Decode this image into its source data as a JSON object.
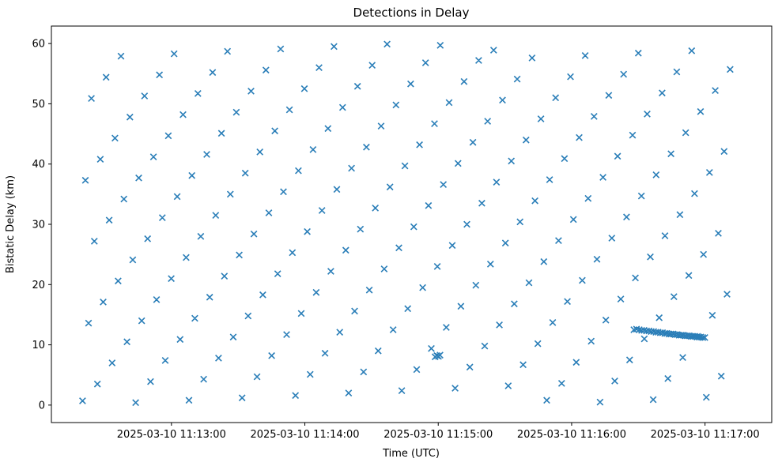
{
  "chart_data": {
    "type": "scatter",
    "title": "Detections in Delay",
    "xlabel": "Time (UTC)",
    "ylabel": "Bistatic Delay (km)",
    "marker": "x",
    "marker_color": "#1f77b4",
    "grid": false,
    "legend": "none",
    "x_unit": "seconds after 2025-03-10 11:12:00",
    "xlim": [
      6,
      330
    ],
    "ylim": [
      -2.9,
      62.9
    ],
    "x_ticks": {
      "seconds": [
        60,
        120,
        180,
        240,
        300
      ],
      "labels": [
        "2025-03-10 11:13:00",
        "2025-03-10 11:14:00",
        "2025-03-10 11:15:00",
        "2025-03-10 11:16:00",
        "2025-03-10 11:17:00"
      ]
    },
    "y_ticks": [
      0,
      10,
      20,
      30,
      40,
      50,
      60
    ],
    "points": [
      [
        20,
        0.7
      ],
      [
        21.3,
        37.3
      ],
      [
        22.7,
        13.6
      ],
      [
        24,
        50.9
      ],
      [
        25.3,
        27.2
      ],
      [
        26.7,
        3.5
      ],
      [
        28,
        40.8
      ],
      [
        29.3,
        17.1
      ],
      [
        30.6,
        54.4
      ],
      [
        32,
        30.7
      ],
      [
        33.3,
        7
      ],
      [
        34.6,
        44.3
      ],
      [
        36,
        20.6
      ],
      [
        37.3,
        57.9
      ],
      [
        38.6,
        34.2
      ],
      [
        40,
        10.5
      ],
      [
        41.3,
        47.8
      ],
      [
        42.6,
        24.1
      ],
      [
        43.9,
        0.4
      ],
      [
        45.3,
        37.7
      ],
      [
        46.6,
        14
      ],
      [
        47.9,
        51.3
      ],
      [
        49.3,
        27.6
      ],
      [
        50.6,
        3.9
      ],
      [
        51.9,
        41.2
      ],
      [
        53.3,
        17.5
      ],
      [
        54.6,
        54.8
      ],
      [
        55.9,
        31.1
      ],
      [
        57.2,
        7.4
      ],
      [
        58.6,
        44.7
      ],
      [
        59.9,
        21
      ],
      [
        61.2,
        58.3
      ],
      [
        62.6,
        34.6
      ],
      [
        63.9,
        10.9
      ],
      [
        65.2,
        48.2
      ],
      [
        66.6,
        24.5
      ],
      [
        67.9,
        0.8
      ],
      [
        69.2,
        38.1
      ],
      [
        70.5,
        14.4
      ],
      [
        71.9,
        51.7
      ],
      [
        73.2,
        28
      ],
      [
        74.5,
        4.3
      ],
      [
        75.9,
        41.6
      ],
      [
        77.2,
        17.9
      ],
      [
        78.5,
        55.2
      ],
      [
        79.9,
        31.5
      ],
      [
        81.2,
        7.8
      ],
      [
        82.5,
        45.1
      ],
      [
        83.8,
        21.4
      ],
      [
        85.2,
        58.7
      ],
      [
        86.5,
        35
      ],
      [
        87.8,
        11.3
      ],
      [
        89.2,
        48.6
      ],
      [
        90.5,
        24.9
      ],
      [
        91.8,
        1.2
      ],
      [
        93.2,
        38.5
      ],
      [
        94.5,
        14.8
      ],
      [
        95.8,
        52.1
      ],
      [
        97.1,
        28.4
      ],
      [
        98.5,
        4.7
      ],
      [
        99.8,
        42
      ],
      [
        101.1,
        18.3
      ],
      [
        102.5,
        55.6
      ],
      [
        103.8,
        31.9
      ],
      [
        105.1,
        8.2
      ],
      [
        106.5,
        45.5
      ],
      [
        107.8,
        21.8
      ],
      [
        109.1,
        59.1
      ],
      [
        110.4,
        35.4
      ],
      [
        111.8,
        11.7
      ],
      [
        113.1,
        49
      ],
      [
        114.4,
        25.3
      ],
      [
        115.8,
        1.6
      ],
      [
        117.1,
        38.9
      ],
      [
        118.4,
        15.2
      ],
      [
        119.8,
        52.5
      ],
      [
        121.1,
        28.8
      ],
      [
        122.4,
        5.1
      ],
      [
        123.7,
        42.4
      ],
      [
        125.1,
        18.7
      ],
      [
        126.4,
        56
      ],
      [
        127.7,
        32.3
      ],
      [
        129.1,
        8.6
      ],
      [
        130.4,
        45.9
      ],
      [
        131.7,
        22.2
      ],
      [
        133.1,
        59.5
      ],
      [
        134.4,
        35.8
      ],
      [
        135.7,
        12.1
      ],
      [
        137,
        49.4
      ],
      [
        138.4,
        25.7
      ],
      [
        139.7,
        2
      ],
      [
        141,
        39.3
      ],
      [
        142.4,
        15.6
      ],
      [
        143.7,
        52.9
      ],
      [
        145,
        29.2
      ],
      [
        146.4,
        5.5
      ],
      [
        147.7,
        42.8
      ],
      [
        149,
        19.1
      ],
      [
        150.3,
        56.4
      ],
      [
        151.7,
        32.7
      ],
      [
        153,
        9
      ],
      [
        154.3,
        46.3
      ],
      [
        155.7,
        22.6
      ],
      [
        157,
        59.9
      ],
      [
        158.3,
        36.2
      ],
      [
        159.7,
        12.5
      ],
      [
        161,
        49.8
      ],
      [
        162.3,
        26.1
      ],
      [
        163.6,
        2.4
      ],
      [
        165,
        39.7
      ],
      [
        166.3,
        16
      ],
      [
        167.6,
        53.3
      ],
      [
        169,
        29.6
      ],
      [
        170.3,
        5.9
      ],
      [
        171.6,
        43.2
      ],
      [
        173,
        19.5
      ],
      [
        174.3,
        56.8
      ],
      [
        175.6,
        33.1
      ],
      [
        176.9,
        9.4
      ],
      [
        178.3,
        46.7
      ],
      [
        179.6,
        23
      ],
      [
        180.9,
        59.7
      ],
      [
        182.3,
        36.6
      ],
      [
        183.6,
        12.9
      ],
      [
        184.9,
        50.2
      ],
      [
        186.3,
        26.5
      ],
      [
        187.6,
        2.8
      ],
      [
        188.9,
        40.1
      ],
      [
        190.2,
        16.4
      ],
      [
        191.6,
        53.7
      ],
      [
        192.9,
        30
      ],
      [
        194.2,
        6.3
      ],
      [
        195.6,
        43.6
      ],
      [
        196.9,
        19.9
      ],
      [
        198.2,
        57.2
      ],
      [
        199.6,
        33.5
      ],
      [
        200.9,
        9.8
      ],
      [
        202.2,
        47.1
      ],
      [
        203.5,
        23.4
      ],
      [
        204.9,
        58.9
      ],
      [
        206.2,
        37
      ],
      [
        207.5,
        13.3
      ],
      [
        208.9,
        50.6
      ],
      [
        210.2,
        26.9
      ],
      [
        211.5,
        3.2
      ],
      [
        212.9,
        40.5
      ],
      [
        214.2,
        16.8
      ],
      [
        215.5,
        54.1
      ],
      [
        216.8,
        30.4
      ],
      [
        218.2,
        6.7
      ],
      [
        219.5,
        44
      ],
      [
        220.8,
        20.3
      ],
      [
        222.2,
        57.6
      ],
      [
        223.5,
        33.9
      ],
      [
        224.8,
        10.2
      ],
      [
        226.2,
        47.5
      ],
      [
        227.5,
        23.8
      ],
      [
        228.8,
        0.8
      ],
      [
        230.1,
        37.4
      ],
      [
        231.5,
        13.7
      ],
      [
        232.8,
        51
      ],
      [
        234.1,
        27.3
      ],
      [
        235.5,
        3.6
      ],
      [
        236.8,
        40.9
      ],
      [
        238.1,
        17.2
      ],
      [
        239.5,
        54.5
      ],
      [
        240.8,
        30.8
      ],
      [
        242.1,
        7.1
      ],
      [
        243.4,
        44.4
      ],
      [
        244.8,
        20.7
      ],
      [
        246.1,
        58
      ],
      [
        247.4,
        34.3
      ],
      [
        248.8,
        10.6
      ],
      [
        250.1,
        47.9
      ],
      [
        251.4,
        24.2
      ],
      [
        252.8,
        0.5
      ],
      [
        254.1,
        37.8
      ],
      [
        255.4,
        14.1
      ],
      [
        256.7,
        51.4
      ],
      [
        258.1,
        27.7
      ],
      [
        259.4,
        4
      ],
      [
        260.7,
        41.3
      ],
      [
        262.1,
        17.6
      ],
      [
        263.4,
        54.9
      ],
      [
        264.7,
        31.2
      ],
      [
        266.1,
        7.5
      ],
      [
        267.4,
        44.8
      ],
      [
        268.7,
        21.1
      ],
      [
        270,
        58.4
      ],
      [
        271.4,
        34.7
      ],
      [
        272.7,
        11
      ],
      [
        274,
        48.3
      ],
      [
        275.4,
        24.6
      ],
      [
        276.7,
        0.9
      ],
      [
        278,
        38.2
      ],
      [
        279.4,
        14.5
      ],
      [
        280.7,
        51.8
      ],
      [
        282,
        28.1
      ],
      [
        283.3,
        4.4
      ],
      [
        284.7,
        41.7
      ],
      [
        286,
        18
      ],
      [
        287.3,
        55.3
      ],
      [
        288.7,
        31.6
      ],
      [
        290,
        7.9
      ],
      [
        291.3,
        45.2
      ],
      [
        292.7,
        21.5
      ],
      [
        294,
        58.8
      ],
      [
        295.3,
        35.1
      ],
      [
        296.6,
        11.4
      ],
      [
        298,
        48.7
      ],
      [
        299.3,
        25
      ],
      [
        300.6,
        1.3
      ],
      [
        302,
        38.6
      ],
      [
        303.3,
        14.9
      ],
      [
        304.6,
        52.2
      ],
      [
        306,
        28.5
      ],
      [
        307.3,
        4.8
      ],
      [
        308.6,
        42.1
      ],
      [
        309.9,
        18.4
      ],
      [
        311.3,
        55.7
      ],
      [
        178.6,
        8.0
      ],
      [
        179.4,
        8.2
      ],
      [
        180.1,
        8.1
      ],
      [
        180.8,
        8.3
      ],
      [
        268,
        12.5
      ],
      [
        269.2,
        12.6
      ],
      [
        270.4,
        12.5
      ],
      [
        271.5,
        12.4
      ],
      [
        272.6,
        12.4
      ],
      [
        273.7,
        12.3
      ],
      [
        274.8,
        12.3
      ],
      [
        275.8,
        12.2
      ],
      [
        276.9,
        12.2
      ],
      [
        277.9,
        12.1
      ],
      [
        278.9,
        12.1
      ],
      [
        279.9,
        12.0
      ],
      [
        280.9,
        12.0
      ],
      [
        281.9,
        11.9
      ],
      [
        282.8,
        11.9
      ],
      [
        283.8,
        11.8
      ],
      [
        284.7,
        11.8
      ],
      [
        285.7,
        11.8
      ],
      [
        286.6,
        11.7
      ],
      [
        287.5,
        11.7
      ],
      [
        288.4,
        11.6
      ],
      [
        289.3,
        11.6
      ],
      [
        290.2,
        11.6
      ],
      [
        291.1,
        11.5
      ],
      [
        292.0,
        11.5
      ],
      [
        292.9,
        11.5
      ],
      [
        293.8,
        11.4
      ],
      [
        294.7,
        11.4
      ],
      [
        295.5,
        11.4
      ],
      [
        296.4,
        11.3
      ],
      [
        297.3,
        11.3
      ],
      [
        298.1,
        11.3
      ],
      [
        299.0,
        11.2
      ],
      [
        299.9,
        11.2
      ]
    ]
  }
}
